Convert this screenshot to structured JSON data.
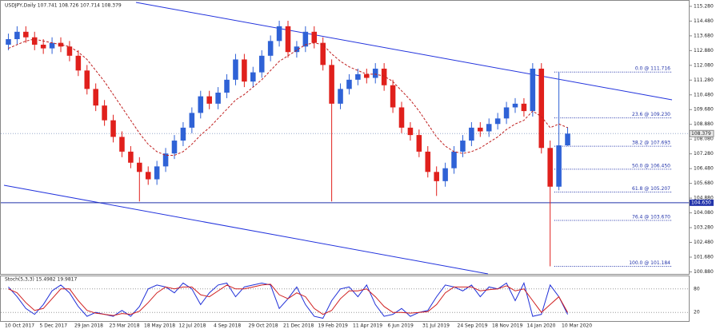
{
  "chart_data": [
    {
      "type": "candlestick",
      "title": "USDJPY,Daily  107.741 108.726 107.714 108.379",
      "up_color": "#2f62d6",
      "down_color": "#e0201c",
      "open": [
        113.2,
        113.5,
        113.9,
        113.6,
        113.2,
        113.0,
        113.3,
        113.1,
        112.6,
        111.8,
        110.8,
        109.9,
        109.1,
        108.2,
        107.4,
        106.8,
        106.3,
        105.9,
        106.6,
        107.3,
        108.0,
        108.7,
        109.5,
        110.4,
        110.0,
        110.6,
        111.3,
        112.4,
        111.2,
        111.7,
        112.6,
        113.4,
        114.2,
        112.8,
        113.1,
        113.9,
        113.3,
        112.1,
        110.0,
        110.8,
        111.3,
        111.6,
        111.4,
        111.9,
        111.0,
        109.8,
        108.7,
        108.3,
        107.4,
        106.3,
        105.8,
        106.5,
        107.4,
        108.0,
        108.7,
        108.5,
        108.9,
        109.2,
        109.8,
        110.0,
        109.6,
        111.9,
        107.6,
        105.5,
        107.741
      ],
      "high": [
        113.8,
        114.2,
        114.2,
        113.9,
        113.5,
        113.6,
        113.6,
        113.4,
        112.9,
        112.1,
        111.1,
        110.2,
        109.4,
        108.5,
        107.7,
        107.1,
        106.6,
        106.9,
        107.6,
        108.3,
        109.0,
        109.8,
        110.7,
        110.7,
        110.9,
        111.6,
        112.7,
        112.7,
        112.0,
        112.9,
        113.7,
        114.5,
        114.5,
        113.4,
        114.2,
        114.2,
        113.6,
        112.4,
        111.1,
        111.6,
        111.9,
        111.9,
        112.2,
        112.2,
        111.3,
        110.1,
        109.0,
        108.6,
        107.7,
        106.6,
        106.8,
        107.7,
        108.3,
        109.0,
        109.0,
        109.2,
        109.5,
        110.1,
        110.3,
        110.3,
        112.2,
        112.2,
        108.0,
        111.716,
        108.726
      ],
      "low": [
        112.9,
        113.2,
        113.3,
        112.9,
        112.7,
        112.7,
        112.8,
        112.3,
        111.5,
        110.5,
        109.6,
        108.8,
        107.9,
        107.1,
        106.5,
        104.7,
        105.6,
        105.6,
        106.3,
        107.0,
        107.7,
        108.4,
        109.2,
        109.7,
        109.7,
        110.3,
        111.0,
        110.9,
        110.9,
        111.4,
        112.3,
        113.1,
        112.5,
        112.5,
        112.8,
        113.0,
        111.8,
        104.7,
        109.7,
        110.5,
        111.0,
        111.1,
        111.1,
        110.7,
        109.5,
        108.4,
        108.0,
        107.1,
        106.0,
        105.0,
        105.5,
        106.2,
        107.1,
        107.7,
        108.2,
        108.2,
        108.6,
        108.9,
        109.5,
        109.3,
        109.3,
        107.3,
        101.184,
        105.3,
        107.714
      ],
      "close": [
        113.5,
        113.9,
        113.6,
        113.2,
        113.0,
        113.3,
        113.1,
        112.6,
        111.8,
        110.8,
        109.9,
        109.1,
        108.2,
        107.4,
        106.8,
        106.3,
        105.9,
        106.6,
        107.3,
        108.0,
        108.7,
        109.5,
        110.4,
        110.0,
        110.6,
        111.3,
        112.4,
        111.2,
        111.7,
        112.6,
        113.4,
        114.2,
        112.8,
        113.1,
        113.9,
        113.3,
        112.1,
        110.0,
        110.8,
        111.3,
        111.6,
        111.4,
        111.9,
        111.0,
        109.8,
        108.7,
        108.3,
        107.4,
        106.3,
        105.8,
        106.5,
        107.4,
        108.0,
        108.7,
        108.5,
        108.9,
        109.2,
        109.8,
        110.0,
        109.6,
        111.9,
        107.6,
        105.5,
        107.741,
        108.379
      ],
      "ma": {
        "color": "#c02020",
        "values": [
          113.0,
          113.2,
          113.4,
          113.5,
          113.4,
          113.3,
          113.2,
          113.1,
          112.8,
          112.4,
          111.8,
          111.2,
          110.5,
          109.8,
          109.1,
          108.4,
          107.8,
          107.4,
          107.2,
          107.2,
          107.4,
          107.8,
          108.3,
          108.7,
          109.2,
          109.7,
          110.2,
          110.5,
          110.9,
          111.3,
          111.8,
          112.3,
          112.6,
          112.9,
          113.2,
          113.3,
          113.2,
          112.7,
          112.3,
          112.0,
          111.8,
          111.6,
          111.6,
          111.5,
          111.2,
          110.7,
          110.2,
          109.6,
          108.9,
          108.2,
          107.7,
          107.4,
          107.3,
          107.4,
          107.6,
          107.9,
          108.2,
          108.6,
          108.9,
          109.1,
          109.6,
          109.3,
          108.7,
          108.9,
          108.7
        ]
      },
      "ylim": [
        100.77,
        115.58
      ],
      "yticks": [
        {
          "value": 115.28,
          "label": "115.280"
        },
        {
          "value": 114.48,
          "label": "114.480"
        },
        {
          "value": 113.68,
          "label": "113.680"
        },
        {
          "value": 112.88,
          "label": "112.880"
        },
        {
          "value": 112.08,
          "label": "112.080"
        },
        {
          "value": 111.28,
          "label": "111.280"
        },
        {
          "value": 110.48,
          "label": "110.480"
        },
        {
          "value": 109.68,
          "label": "109.680"
        },
        {
          "value": 108.88,
          "label": "108.880"
        },
        {
          "value": 108.08,
          "label": "108.080"
        },
        {
          "value": 107.28,
          "label": "107.280"
        },
        {
          "value": 106.48,
          "label": "106.480"
        },
        {
          "value": 105.68,
          "label": "105.680"
        },
        {
          "value": 104.88,
          "label": "104.880"
        },
        {
          "value": 104.08,
          "label": "104.080"
        },
        {
          "value": 103.28,
          "label": "103.280"
        },
        {
          "value": 102.48,
          "label": "102.480"
        },
        {
          "value": 101.68,
          "label": "101.680"
        },
        {
          "value": 100.88,
          "label": "100.880"
        }
      ],
      "level": {
        "value": 104.63,
        "label": "104.630"
      },
      "last_price": {
        "value": 108.379,
        "label": "108.379"
      },
      "fib_levels": [
        {
          "value": 111.716,
          "label": "0.0 @ 111.716"
        },
        {
          "value": 109.23,
          "label": "23.6 @ 109.230"
        },
        {
          "value": 107.693,
          "label": "38.2 @ 107.693"
        },
        {
          "value": 106.45,
          "label": "50.0 @ 106.450"
        },
        {
          "value": 105.207,
          "label": "61.8 @ 105.207"
        },
        {
          "value": 103.67,
          "label": "76.4 @ 103.670"
        },
        {
          "value": 101.184,
          "label": "100.0 @ 101.184"
        }
      ],
      "x_labels": [
        "10 Oct 2017",
        "5 Dec 2017",
        "29 Jan 2018",
        "23 Mar 2018",
        "18 May 2018",
        "12 Jul 2018",
        "4 Sep 2018",
        "29 Oct 2018",
        "21 Dec 2018",
        "19 Feb 2019",
        "11 Apr 2019",
        "6 Jun 2019",
        "31 Jul 2019",
        "24 Sep 2019",
        "18 Nov 2019",
        "14 Jan 2020",
        "10 Mar 2020"
      ]
    },
    {
      "type": "line",
      "title": "Stoch(5,3,3) 15.4982 19.9817",
      "series": [
        {
          "name": "%K",
          "color": "#2030d8",
          "values": [
            85,
            60,
            30,
            15,
            40,
            75,
            90,
            70,
            35,
            10,
            20,
            15,
            10,
            25,
            10,
            35,
            80,
            90,
            85,
            70,
            95,
            80,
            40,
            70,
            90,
            95,
            60,
            85,
            90,
            95,
            90,
            30,
            55,
            85,
            40,
            10,
            5,
            50,
            80,
            85,
            60,
            90,
            40,
            10,
            15,
            30,
            10,
            20,
            25,
            60,
            90,
            85,
            75,
            90,
            60,
            85,
            80,
            95,
            50,
            95,
            10,
            15,
            90,
            60,
            15
          ]
        },
        {
          "name": "%D",
          "color": "#d02020",
          "values": [
            80,
            70,
            45,
            25,
            30,
            55,
            80,
            80,
            50,
            25,
            18,
            15,
            12,
            17,
            15,
            23,
            45,
            70,
            85,
            80,
            85,
            85,
            65,
            60,
            75,
            90,
            80,
            80,
            85,
            90,
            92,
            65,
            55,
            70,
            60,
            30,
            15,
            25,
            55,
            75,
            75,
            80,
            60,
            35,
            20,
            20,
            18,
            20,
            22,
            40,
            70,
            85,
            85,
            85,
            75,
            78,
            80,
            88,
            75,
            80,
            50,
            20,
            40,
            60,
            20
          ]
        }
      ],
      "ylim": [
        0,
        100
      ],
      "yticks": [
        20,
        80
      ]
    }
  ]
}
